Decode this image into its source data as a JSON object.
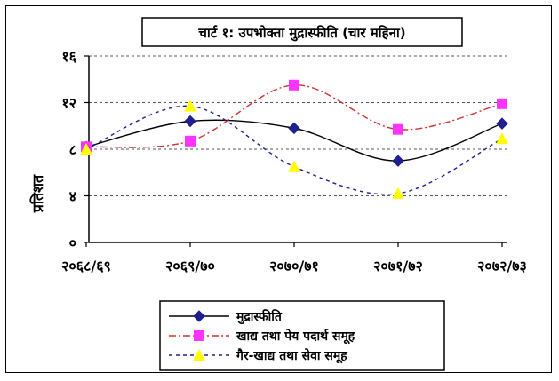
{
  "chart_data": {
    "type": "line",
    "title": "चार्ट १: उपभोक्ता मुद्रास्फीति (चार महिना)",
    "ylabel": "प्रतिशत",
    "xlabel": "",
    "categories": [
      "२०६८/६९",
      "२०६९/७०",
      "२०७०/७१",
      "२०७१/७२",
      "२०७२/७३"
    ],
    "ylim": [
      0,
      16
    ],
    "yticks": [
      0,
      4,
      8,
      12,
      16
    ],
    "ytick_labels": [
      "०",
      "४",
      "८",
      "१२",
      "१६"
    ],
    "grid": "horizontal dashed",
    "legend_position": "bottom",
    "series": [
      {
        "name": "मुद्रास्फीति",
        "values": [
          8.2,
          10.4,
          9.8,
          7.0,
          10.2
        ],
        "color": "#000000",
        "marker": "diamond",
        "marker_color": "#1f1f8f",
        "line_style": "solid"
      },
      {
        "name": "खाद्य तथा पेय पदार्थ समूह",
        "values": [
          8.2,
          8.7,
          13.5,
          9.7,
          11.9
        ],
        "color": "#cc3333",
        "marker": "square",
        "marker_color": "#ff33ff",
        "line_style": "dash-dot"
      },
      {
        "name": "गैर-खाद्य तथा सेवा समूह",
        "values": [
          8.0,
          11.7,
          6.5,
          4.2,
          8.9
        ],
        "color": "#1f1f8f",
        "marker": "triangle",
        "marker_color": "#ffff00",
        "line_style": "dashed"
      }
    ]
  }
}
